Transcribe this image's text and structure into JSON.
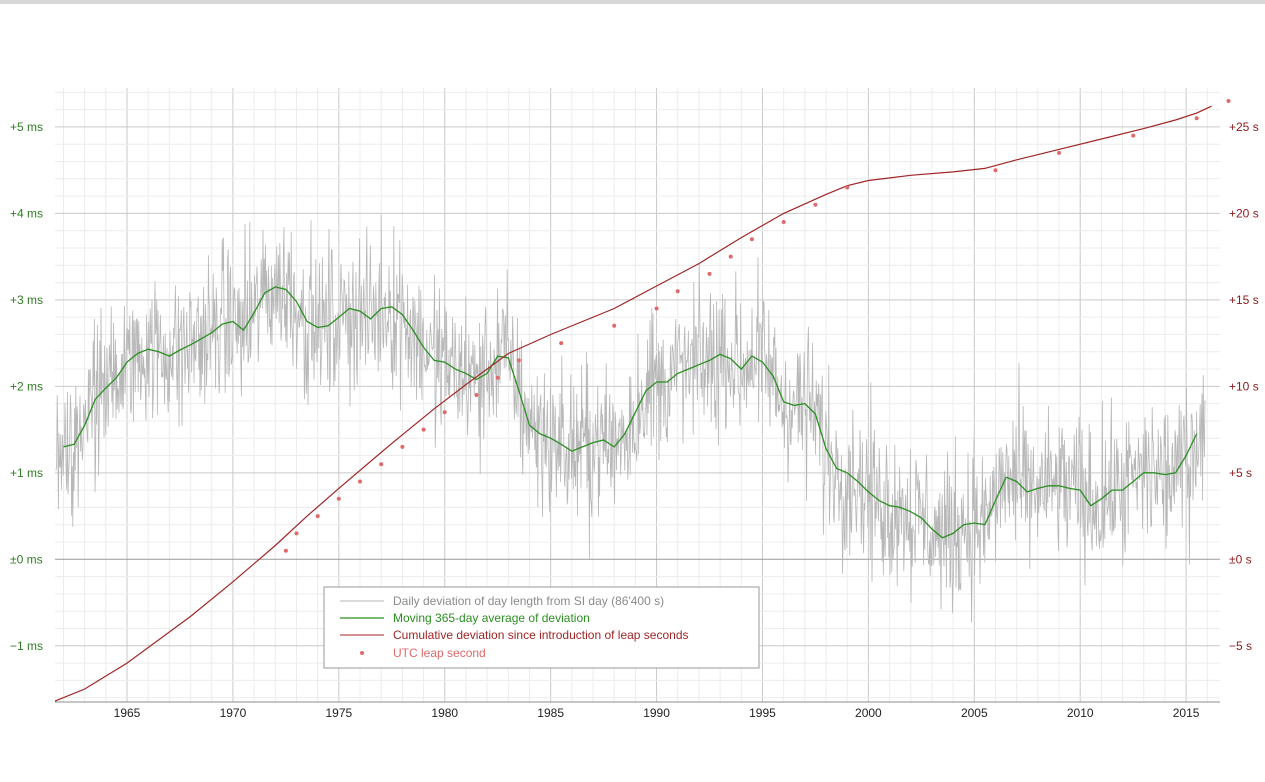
{
  "colors": {
    "daily": "#b7b7b7",
    "average": "#2b8f22",
    "cumulative": "#a02525",
    "leap": "#e06a6a",
    "left_axis_text": "#2e7d22",
    "right_axis_text": "#8b1a1a"
  },
  "chart_data": {
    "type": "line",
    "x_range": [
      1961.6,
      2016.6
    ],
    "left_axis": {
      "unit": "ms",
      "range": [
        -1.65,
        5.45
      ],
      "ticks": [
        5,
        4,
        3,
        2,
        1,
        0,
        -1
      ],
      "tick_labels": [
        "+5 ms",
        "+4 ms",
        "+3 ms",
        "+2 ms",
        "+1 ms",
        "±0 ms",
        "−1 ms"
      ]
    },
    "right_axis": {
      "unit": "s",
      "range": [
        -8.25,
        27.25
      ],
      "ticks": [
        25,
        20,
        15,
        10,
        5,
        0,
        -5
      ],
      "tick_labels": [
        "+25 s",
        "+20 s",
        "+15 s",
        "+10 s",
        "+5 s",
        "±0 s",
        "−5 s"
      ]
    },
    "x_axis": {
      "ticks": [
        1965,
        1970,
        1975,
        1980,
        1985,
        1990,
        1995,
        2000,
        2005,
        2010,
        2015
      ],
      "tick_labels": [
        "1965",
        "1970",
        "1975",
        "1980",
        "1985",
        "1990",
        "1995",
        "2000",
        "2005",
        "2010",
        "2015"
      ]
    },
    "grid": true,
    "legend": {
      "position": "bottom-center",
      "entries": [
        "Daily deviation of day length from SI day (86'400 s)",
        "Moving 365-day average of deviation",
        "Cumulative deviation since introduction of leap seconds",
        "UTC leap second"
      ]
    },
    "series": [
      {
        "name": "Moving 365-day average of deviation",
        "axis": "left",
        "x": [
          1962.0,
          1962.5,
          1963.0,
          1963.5,
          1964.0,
          1964.5,
          1965.0,
          1965.5,
          1966.0,
          1966.5,
          1967.0,
          1967.5,
          1968.0,
          1968.5,
          1969.0,
          1969.5,
          1970.0,
          1970.5,
          1971.0,
          1971.5,
          1972.0,
          1972.5,
          1973.0,
          1973.5,
          1974.0,
          1974.5,
          1975.0,
          1975.5,
          1976.0,
          1976.5,
          1977.0,
          1977.5,
          1978.0,
          1978.5,
          1979.0,
          1979.5,
          1980.0,
          1980.5,
          1981.0,
          1981.5,
          1982.0,
          1982.5,
          1983.0,
          1983.5,
          1984.0,
          1984.5,
          1985.0,
          1985.5,
          1986.0,
          1986.5,
          1987.0,
          1987.5,
          1988.0,
          1988.5,
          1989.0,
          1989.5,
          1990.0,
          1990.5,
          1991.0,
          1991.5,
          1992.0,
          1992.5,
          1993.0,
          1993.5,
          1994.0,
          1994.5,
          1995.0,
          1995.5,
          1996.0,
          1996.5,
          1997.0,
          1997.5,
          1998.0,
          1998.5,
          1999.0,
          1999.5,
          2000.0,
          2000.5,
          2001.0,
          2001.5,
          2002.0,
          2002.5,
          2003.0,
          2003.5,
          2004.0,
          2004.5,
          2005.0,
          2005.5,
          2006.0,
          2006.5,
          2007.0,
          2007.5,
          2008.0,
          2008.5,
          2009.0,
          2009.5,
          2010.0,
          2010.5,
          2011.0,
          2011.5,
          2012.0,
          2012.5,
          2013.0,
          2013.5,
          2014.0,
          2014.5,
          2015.0,
          2015.5
        ],
        "values": [
          1.3,
          1.33,
          1.55,
          1.85,
          1.98,
          2.1,
          2.28,
          2.38,
          2.43,
          2.4,
          2.35,
          2.42,
          2.48,
          2.55,
          2.62,
          2.72,
          2.75,
          2.65,
          2.85,
          3.08,
          3.15,
          3.12,
          2.98,
          2.75,
          2.68,
          2.7,
          2.8,
          2.9,
          2.87,
          2.78,
          2.9,
          2.92,
          2.83,
          2.65,
          2.45,
          2.3,
          2.28,
          2.2,
          2.15,
          2.08,
          2.15,
          2.35,
          2.33,
          1.95,
          1.55,
          1.45,
          1.4,
          1.33,
          1.25,
          1.3,
          1.35,
          1.38,
          1.3,
          1.45,
          1.7,
          1.95,
          2.05,
          2.05,
          2.15,
          2.2,
          2.25,
          2.3,
          2.37,
          2.32,
          2.2,
          2.35,
          2.28,
          2.12,
          1.82,
          1.78,
          1.8,
          1.68,
          1.28,
          1.05,
          1.0,
          0.9,
          0.78,
          0.68,
          0.62,
          0.6,
          0.55,
          0.48,
          0.35,
          0.25,
          0.3,
          0.4,
          0.42,
          0.4,
          0.68,
          0.95,
          0.9,
          0.78,
          0.82,
          0.85,
          0.85,
          0.82,
          0.8,
          0.62,
          0.7,
          0.8,
          0.8,
          0.9,
          1.0,
          1.0,
          0.98,
          1.0,
          1.2,
          1.45
        ]
      },
      {
        "name": "Cumulative deviation since introduction of leap seconds",
        "axis": "right",
        "x": [
          1961.6,
          1963.0,
          1965.0,
          1968.0,
          1970.0,
          1972.0,
          1973.5,
          1975.0,
          1977.5,
          1979.5,
          1981.0,
          1983.0,
          1985.0,
          1988.0,
          1990.0,
          1992.0,
          1994.0,
          1996.0,
          1998.0,
          1999.0,
          2000.0,
          2002.0,
          2004.0,
          2005.5,
          2007.0,
          2009.0,
          2011.0,
          2013.0,
          2014.5,
          2015.5,
          2016.2
        ],
        "values": [
          -8.2,
          -7.5,
          -6.0,
          -3.3,
          -1.3,
          0.8,
          2.5,
          4.1,
          6.7,
          8.7,
          10.1,
          11.9,
          13.0,
          14.5,
          15.8,
          17.1,
          18.6,
          20.0,
          21.1,
          21.6,
          21.9,
          22.2,
          22.4,
          22.6,
          23.1,
          23.7,
          24.3,
          24.9,
          25.4,
          25.8,
          26.2
        ]
      },
      {
        "name": "UTC leap second",
        "axis": "right",
        "x": [
          1972.5,
          1973.0,
          1974.0,
          1975.0,
          1976.0,
          1977.0,
          1978.0,
          1979.0,
          1980.0,
          1981.5,
          1982.5,
          1983.5,
          1985.5,
          1988.0,
          1990.0,
          1991.0,
          1992.5,
          1993.5,
          1994.5,
          1996.0,
          1997.5,
          1999.0,
          2006.0,
          2009.0,
          2012.5,
          2015.5,
          2017.0
        ],
        "values": [
          0.5,
          1.5,
          2.5,
          3.5,
          4.5,
          5.5,
          6.5,
          7.5,
          8.5,
          9.5,
          10.5,
          11.5,
          12.5,
          13.5,
          14.5,
          15.5,
          16.5,
          17.5,
          18.5,
          19.5,
          20.5,
          21.5,
          22.5,
          23.5,
          24.5,
          25.5,
          26.5
        ]
      }
    ]
  }
}
